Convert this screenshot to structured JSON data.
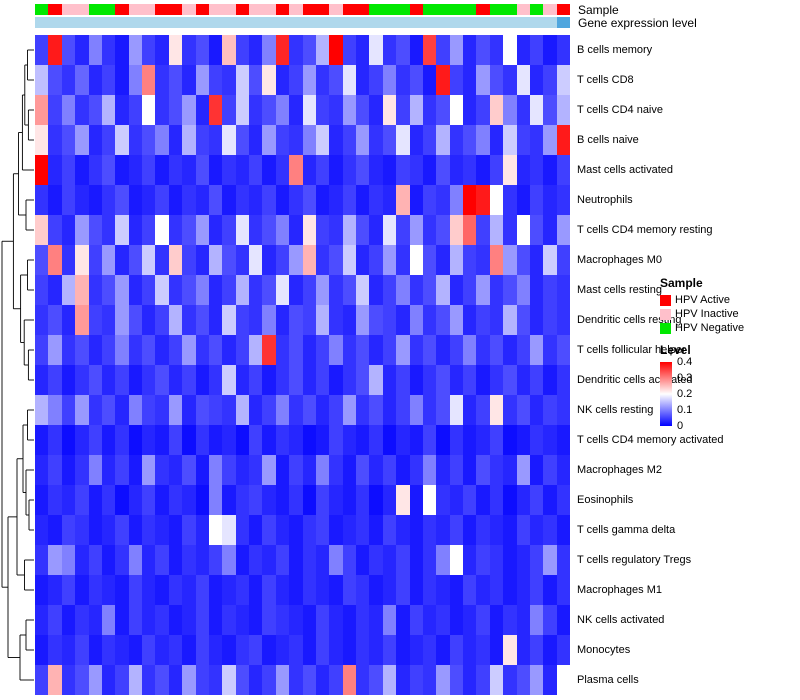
{
  "annotation": {
    "sample_label": "Sample",
    "gene_label": "Gene expression level",
    "sample_values": [
      "HPV Negative",
      "HPV Active",
      "HPV Inactive",
      "HPV Inactive",
      "HPV Negative",
      "HPV Negative",
      "HPV Active",
      "HPV Inactive",
      "HPV Inactive",
      "HPV Active",
      "HPV Active",
      "HPV Inactive",
      "HPV Active",
      "HPV Inactive",
      "HPV Inactive",
      "HPV Active",
      "HPV Inactive",
      "HPV Inactive",
      "HPV Active",
      "HPV Inactive",
      "HPV Active",
      "HPV Active",
      "HPV Inactive",
      "HPV Active",
      "HPV Active",
      "HPV Negative",
      "HPV Negative",
      "HPV Negative",
      "HPV Active",
      "HPV Negative",
      "HPV Negative",
      "HPV Negative",
      "HPV Negative",
      "HPV Active",
      "HPV Negative",
      "HPV Negative",
      "HPV Inactive",
      "HPV Negative",
      "HPV Inactive",
      "HPV Active"
    ],
    "sample_colors": {
      "HPV Active": "#FF0000",
      "HPV Inactive": "#FFC0CB",
      "HPV Negative": "#00E800"
    },
    "gene_default_color": "#AFD8EC",
    "gene_overrides": {
      "39": "#4FA6DE"
    }
  },
  "legend": {
    "sample_title": "Sample",
    "sample_entries": [
      {
        "label": "HPV Active",
        "color": "#FF0000"
      },
      {
        "label": "HPV Inactive",
        "color": "#FFC0CB"
      },
      {
        "label": "HPV Negative",
        "color": "#00E800"
      }
    ],
    "level_title": "Level",
    "level_ticks": [
      "0.4",
      "0.3",
      "0.2",
      "0.1",
      "0"
    ],
    "level_gradient": [
      "#FF0000",
      "#FFFFFF",
      "#0000FF"
    ]
  },
  "chart_data": {
    "type": "heatmap",
    "title": "",
    "rows": [
      "B cells memory",
      "T cells CD8",
      "T cells CD4 naive",
      "B cells naive",
      "Mast cells activated",
      "Neutrophils",
      "T cells CD4 memory resting",
      "Macrophages M0",
      "Mast cells resting",
      "Dendritic cells resting",
      "T cells follicular helper",
      "Dendritic cells activated",
      "NK cells resting",
      "T cells CD4 memory activated",
      "Macrophages M2",
      "Eosinophils",
      "T cells gamma delta",
      "T cells regulatory Tregs",
      "Macrophages M1",
      "NK cells activated",
      "Monocytes",
      "Plasma cells"
    ],
    "columns": 40,
    "value_range": [
      0,
      0.4
    ],
    "colormap": "blue-white-red",
    "values": [
      [
        0.05,
        0.38,
        0.06,
        0.03,
        0.1,
        0.04,
        0.02,
        0.12,
        0.05,
        0.03,
        0.22,
        0.04,
        0.06,
        0.02,
        0.25,
        0.05,
        0.03,
        0.1,
        0.37,
        0.04,
        0.06,
        0.14,
        0.4,
        0.05,
        0.03,
        0.18,
        0.04,
        0.06,
        0.02,
        0.35,
        0.05,
        0.12,
        0.03,
        0.06,
        0.04,
        0.2,
        0.03,
        0.05,
        0.02,
        0.04
      ],
      [
        0.15,
        0.06,
        0.04,
        0.08,
        0.03,
        0.05,
        0.02,
        0.1,
        0.3,
        0.04,
        0.06,
        0.03,
        0.12,
        0.05,
        0.04,
        0.16,
        0.06,
        0.22,
        0.03,
        0.05,
        0.12,
        0.04,
        0.06,
        0.18,
        0.03,
        0.05,
        0.1,
        0.04,
        0.06,
        0.02,
        0.38,
        0.05,
        0.03,
        0.12,
        0.06,
        0.04,
        0.18,
        0.03,
        0.05,
        0.16
      ],
      [
        0.28,
        0.05,
        0.1,
        0.04,
        0.06,
        0.14,
        0.03,
        0.05,
        0.2,
        0.04,
        0.06,
        0.12,
        0.03,
        0.36,
        0.05,
        0.16,
        0.04,
        0.06,
        0.1,
        0.03,
        0.18,
        0.05,
        0.04,
        0.12,
        0.06,
        0.03,
        0.22,
        0.05,
        0.14,
        0.04,
        0.06,
        0.2,
        0.03,
        0.05,
        0.24,
        0.1,
        0.04,
        0.18,
        0.06,
        0.14
      ],
      [
        0.22,
        0.04,
        0.06,
        0.12,
        0.03,
        0.05,
        0.16,
        0.04,
        0.06,
        0.1,
        0.03,
        0.14,
        0.05,
        0.04,
        0.18,
        0.06,
        0.03,
        0.12,
        0.05,
        0.04,
        0.1,
        0.16,
        0.03,
        0.05,
        0.12,
        0.04,
        0.06,
        0.18,
        0.03,
        0.05,
        0.14,
        0.04,
        0.06,
        0.1,
        0.03,
        0.16,
        0.05,
        0.04,
        0.12,
        0.38
      ],
      [
        0.4,
        0.03,
        0.05,
        0.02,
        0.04,
        0.06,
        0.02,
        0.03,
        0.05,
        0.02,
        0.04,
        0.03,
        0.06,
        0.02,
        0.04,
        0.03,
        0.05,
        0.02,
        0.04,
        0.3,
        0.03,
        0.05,
        0.02,
        0.04,
        0.06,
        0.03,
        0.02,
        0.05,
        0.04,
        0.02,
        0.06,
        0.03,
        0.04,
        0.02,
        0.05,
        0.22,
        0.03,
        0.04,
        0.02,
        0.05
      ],
      [
        0.04,
        0.02,
        0.05,
        0.03,
        0.02,
        0.04,
        0.06,
        0.02,
        0.03,
        0.05,
        0.02,
        0.04,
        0.03,
        0.06,
        0.02,
        0.04,
        0.03,
        0.05,
        0.02,
        0.04,
        0.06,
        0.02,
        0.03,
        0.05,
        0.02,
        0.04,
        0.03,
        0.26,
        0.02,
        0.05,
        0.04,
        0.1,
        0.4,
        0.38,
        0.2,
        0.04,
        0.02,
        0.05,
        0.03,
        0.04
      ],
      [
        0.24,
        0.05,
        0.03,
        0.12,
        0.06,
        0.04,
        0.16,
        0.03,
        0.05,
        0.2,
        0.04,
        0.06,
        0.12,
        0.03,
        0.05,
        0.18,
        0.04,
        0.06,
        0.1,
        0.03,
        0.22,
        0.05,
        0.04,
        0.14,
        0.06,
        0.03,
        0.18,
        0.05,
        0.12,
        0.04,
        0.06,
        0.24,
        0.32,
        0.05,
        0.14,
        0.04,
        0.2,
        0.06,
        0.03,
        0.12
      ],
      [
        0.06,
        0.3,
        0.04,
        0.22,
        0.05,
        0.12,
        0.03,
        0.06,
        0.16,
        0.04,
        0.24,
        0.05,
        0.03,
        0.14,
        0.06,
        0.04,
        0.18,
        0.03,
        0.05,
        0.12,
        0.26,
        0.04,
        0.06,
        0.16,
        0.03,
        0.05,
        0.12,
        0.04,
        0.2,
        0.06,
        0.03,
        0.14,
        0.05,
        0.04,
        0.3,
        0.12,
        0.06,
        0.03,
        0.16,
        0.05
      ],
      [
        0.05,
        0.03,
        0.14,
        0.26,
        0.04,
        0.06,
        0.12,
        0.03,
        0.05,
        0.16,
        0.04,
        0.06,
        0.1,
        0.03,
        0.05,
        0.14,
        0.04,
        0.06,
        0.18,
        0.03,
        0.05,
        0.12,
        0.04,
        0.06,
        0.16,
        0.03,
        0.05,
        0.1,
        0.04,
        0.06,
        0.14,
        0.03,
        0.05,
        0.12,
        0.04,
        0.06,
        0.1,
        0.03,
        0.05,
        0.04
      ],
      [
        0.04,
        0.06,
        0.03,
        0.28,
        0.05,
        0.04,
        0.12,
        0.06,
        0.03,
        0.05,
        0.14,
        0.04,
        0.06,
        0.03,
        0.16,
        0.05,
        0.04,
        0.1,
        0.03,
        0.06,
        0.05,
        0.14,
        0.04,
        0.03,
        0.12,
        0.06,
        0.05,
        0.03,
        0.1,
        0.04,
        0.06,
        0.12,
        0.03,
        0.05,
        0.04,
        0.14,
        0.06,
        0.03,
        0.05,
        0.04
      ],
      [
        0.05,
        0.12,
        0.04,
        0.06,
        0.03,
        0.05,
        0.1,
        0.04,
        0.06,
        0.03,
        0.05,
        0.12,
        0.04,
        0.06,
        0.03,
        0.05,
        0.14,
        0.36,
        0.04,
        0.06,
        0.03,
        0.05,
        0.1,
        0.04,
        0.06,
        0.03,
        0.05,
        0.12,
        0.04,
        0.06,
        0.03,
        0.05,
        0.1,
        0.04,
        0.06,
        0.03,
        0.05,
        0.12,
        0.04,
        0.06
      ],
      [
        0.03,
        0.05,
        0.02,
        0.04,
        0.06,
        0.03,
        0.05,
        0.02,
        0.04,
        0.06,
        0.03,
        0.05,
        0.02,
        0.04,
        0.16,
        0.03,
        0.05,
        0.02,
        0.04,
        0.06,
        0.03,
        0.05,
        0.02,
        0.04,
        0.06,
        0.14,
        0.03,
        0.05,
        0.02,
        0.04,
        0.06,
        0.03,
        0.05,
        0.02,
        0.04,
        0.06,
        0.03,
        0.05,
        0.02,
        0.04
      ],
      [
        0.14,
        0.1,
        0.05,
        0.12,
        0.04,
        0.06,
        0.03,
        0.1,
        0.05,
        0.04,
        0.12,
        0.03,
        0.06,
        0.05,
        0.04,
        0.14,
        0.03,
        0.05,
        0.1,
        0.04,
        0.06,
        0.03,
        0.05,
        0.12,
        0.04,
        0.06,
        0.03,
        0.05,
        0.1,
        0.04,
        0.06,
        0.18,
        0.03,
        0.05,
        0.22,
        0.04,
        0.06,
        0.03,
        0.05,
        0.04
      ],
      [
        0.02,
        0.04,
        0.01,
        0.03,
        0.05,
        0.02,
        0.04,
        0.01,
        0.03,
        0.02,
        0.05,
        0.01,
        0.04,
        0.02,
        0.03,
        0.01,
        0.05,
        0.02,
        0.04,
        0.03,
        0.01,
        0.02,
        0.05,
        0.03,
        0.02,
        0.04,
        0.01,
        0.03,
        0.02,
        0.05,
        0.01,
        0.04,
        0.02,
        0.03,
        0.05,
        0.01,
        0.02,
        0.04,
        0.03,
        0.02
      ],
      [
        0.03,
        0.05,
        0.02,
        0.04,
        0.1,
        0.03,
        0.05,
        0.02,
        0.12,
        0.04,
        0.03,
        0.06,
        0.02,
        0.1,
        0.05,
        0.03,
        0.04,
        0.12,
        0.02,
        0.05,
        0.03,
        0.1,
        0.04,
        0.02,
        0.06,
        0.03,
        0.05,
        0.02,
        0.04,
        0.1,
        0.03,
        0.05,
        0.02,
        0.06,
        0.04,
        0.03,
        0.12,
        0.02,
        0.05,
        0.03
      ],
      [
        0.02,
        0.04,
        0.03,
        0.05,
        0.02,
        0.04,
        0.01,
        0.03,
        0.05,
        0.02,
        0.04,
        0.03,
        0.01,
        0.1,
        0.02,
        0.04,
        0.05,
        0.03,
        0.02,
        0.04,
        0.01,
        0.05,
        0.03,
        0.02,
        0.04,
        0.01,
        0.03,
        0.22,
        0.02,
        0.2,
        0.04,
        0.03,
        0.05,
        0.02,
        0.04,
        0.01,
        0.03,
        0.05,
        0.02,
        0.04
      ],
      [
        0.03,
        0.02,
        0.05,
        0.04,
        0.02,
        0.03,
        0.05,
        0.02,
        0.04,
        0.03,
        0.02,
        0.05,
        0.03,
        0.2,
        0.18,
        0.04,
        0.02,
        0.05,
        0.03,
        0.02,
        0.04,
        0.05,
        0.02,
        0.03,
        0.04,
        0.02,
        0.05,
        0.03,
        0.02,
        0.04,
        0.03,
        0.05,
        0.02,
        0.04,
        0.03,
        0.02,
        0.05,
        0.03,
        0.04,
        0.02
      ],
      [
        0.04,
        0.12,
        0.1,
        0.03,
        0.05,
        0.02,
        0.04,
        0.1,
        0.03,
        0.05,
        0.02,
        0.04,
        0.03,
        0.05,
        0.1,
        0.02,
        0.04,
        0.03,
        0.05,
        0.02,
        0.04,
        0.03,
        0.1,
        0.05,
        0.02,
        0.04,
        0.03,
        0.05,
        0.02,
        0.04,
        0.1,
        0.2,
        0.03,
        0.05,
        0.04,
        0.02,
        0.03,
        0.05,
        0.12,
        0.04
      ],
      [
        0.02,
        0.03,
        0.05,
        0.02,
        0.04,
        0.03,
        0.02,
        0.05,
        0.03,
        0.02,
        0.04,
        0.03,
        0.05,
        0.02,
        0.03,
        0.04,
        0.02,
        0.05,
        0.03,
        0.02,
        0.04,
        0.03,
        0.02,
        0.05,
        0.04,
        0.02,
        0.03,
        0.05,
        0.02,
        0.04,
        0.03,
        0.02,
        0.05,
        0.03,
        0.04,
        0.02,
        0.03,
        0.05,
        0.02,
        0.04
      ],
      [
        0.03,
        0.05,
        0.02,
        0.04,
        0.03,
        0.1,
        0.02,
        0.05,
        0.03,
        0.04,
        0.02,
        0.03,
        0.05,
        0.02,
        0.04,
        0.03,
        0.02,
        0.05,
        0.04,
        0.03,
        0.02,
        0.05,
        0.03,
        0.02,
        0.04,
        0.03,
        0.1,
        0.02,
        0.05,
        0.03,
        0.04,
        0.02,
        0.03,
        0.05,
        0.02,
        0.04,
        0.03,
        0.1,
        0.05,
        0.02
      ],
      [
        0.02,
        0.04,
        0.03,
        0.05,
        0.02,
        0.04,
        0.03,
        0.02,
        0.05,
        0.03,
        0.04,
        0.02,
        0.05,
        0.03,
        0.02,
        0.04,
        0.05,
        0.02,
        0.03,
        0.04,
        0.02,
        0.05,
        0.03,
        0.02,
        0.04,
        0.03,
        0.05,
        0.02,
        0.03,
        0.04,
        0.02,
        0.05,
        0.03,
        0.04,
        0.02,
        0.22,
        0.03,
        0.05,
        0.02,
        0.04
      ],
      [
        0.05,
        0.26,
        0.04,
        0.06,
        0.12,
        0.03,
        0.05,
        0.14,
        0.04,
        0.06,
        0.03,
        0.12,
        0.05,
        0.04,
        0.16,
        0.06,
        0.03,
        0.05,
        0.12,
        0.04,
        0.06,
        0.03,
        0.05,
        0.3,
        0.04,
        0.06,
        0.14,
        0.03,
        0.05,
        0.04,
        0.12,
        0.06,
        0.03,
        0.05,
        0.16,
        0.04,
        0.06,
        0.12,
        0.03,
        0.2
      ]
    ],
    "row_dendrogram": {
      "h": 1.0,
      "c": [
        {
          "h": 0.62,
          "c": [
            {
              "h": 0.45,
              "c": [
                {
                  "h": 0.32,
                  "c": [
                    {
                      "h": 0.24,
                      "c": [
                        {
                          "h": 0.15,
                          "c": [
                            {
                              "leaf": 0
                            },
                            {
                              "leaf": 1
                            }
                          ]
                        },
                        {
                          "h": 0.12,
                          "c": [
                            {
                              "leaf": 2
                            },
                            {
                              "leaf": 3
                            }
                          ]
                        }
                      ]
                    },
                    {
                      "leaf": 4
                    }
                  ]
                },
                {
                  "h": 0.2,
                  "c": [
                    {
                      "leaf": 5
                    },
                    {
                      "leaf": 6
                    }
                  ]
                }
              ]
            },
            {
              "h": 0.38,
              "c": [
                {
                  "h": 0.15,
                  "c": [
                    {
                      "leaf": 7
                    },
                    {
                      "leaf": 8
                    }
                  ]
                },
                {
                  "h": 0.26,
                  "c": [
                    {
                      "leaf": 9
                    },
                    {
                      "h": 0.12,
                      "c": [
                        {
                          "leaf": 10
                        },
                        {
                          "leaf": 11
                        }
                      ]
                    }
                  ]
                }
              ]
            }
          ]
        },
        {
          "h": 0.8,
          "c": [
            {
              "h": 0.5,
              "c": [
                {
                  "h": 0.3,
                  "c": [
                    {
                      "h": 0.15,
                      "c": [
                        {
                          "leaf": 12
                        },
                        {
                          "leaf": 13
                        }
                      ]
                    },
                    {
                      "h": 0.2,
                      "c": [
                        {
                          "leaf": 14
                        },
                        {
                          "h": 0.1,
                          "c": [
                            {
                              "leaf": 15
                            },
                            {
                              "leaf": 16
                            }
                          ]
                        }
                      ]
                    }
                  ]
                },
                {
                  "h": 0.25,
                  "c": [
                    {
                      "leaf": 17
                    },
                    {
                      "leaf": 18
                    }
                  ]
                }
              ]
            },
            {
              "h": 0.4,
              "c": [
                {
                  "h": 0.2,
                  "c": [
                    {
                      "leaf": 19
                    },
                    {
                      "leaf": 20
                    }
                  ]
                },
                {
                  "leaf": 21
                }
              ]
            }
          ]
        }
      ]
    }
  }
}
